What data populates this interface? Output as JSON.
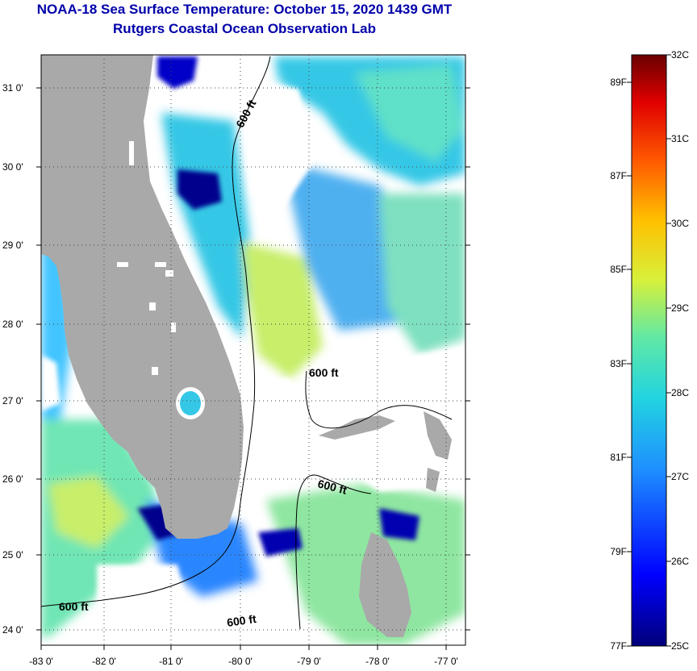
{
  "title": {
    "line1": "NOAA-18 Sea Surface Temperature:  October 15, 2020 1439 GMT",
    "line2": "Rutgers Coastal Ocean Observation Lab"
  },
  "axes": {
    "lat_labels": [
      "31 0'",
      "30 0'",
      "29 0'",
      "28 0'",
      "27 0'",
      "26 0'",
      "25 0'",
      "24 0'"
    ],
    "lon_labels": [
      "-83 0'",
      "-82 0'",
      "-81 0'",
      "-80 0'",
      "-79 0'",
      "-78 0'",
      "-77 0'"
    ]
  },
  "contours": {
    "labels": [
      "600 ft",
      "600 ft",
      "600 ft",
      "600 ft",
      "600 ft"
    ]
  },
  "colorbar": {
    "celsius_labels": [
      "32C",
      "31C",
      "30C",
      "29C",
      "28C",
      "27C",
      "26C",
      "25C"
    ],
    "fahrenheit_labels": [
      "89F",
      "87F",
      "85F",
      "83F",
      "81F",
      "79F",
      "77F"
    ]
  },
  "colors": {
    "land": "#a9a9a9",
    "title": "#0000aa",
    "cloud": "#ffffff",
    "sst_dark_blue": "#00008c",
    "sst_blue": "#1e6eff",
    "sst_cyan": "#35c8e6",
    "sst_green": "#6fe6b4",
    "sst_yellow": "#d2f050"
  }
}
